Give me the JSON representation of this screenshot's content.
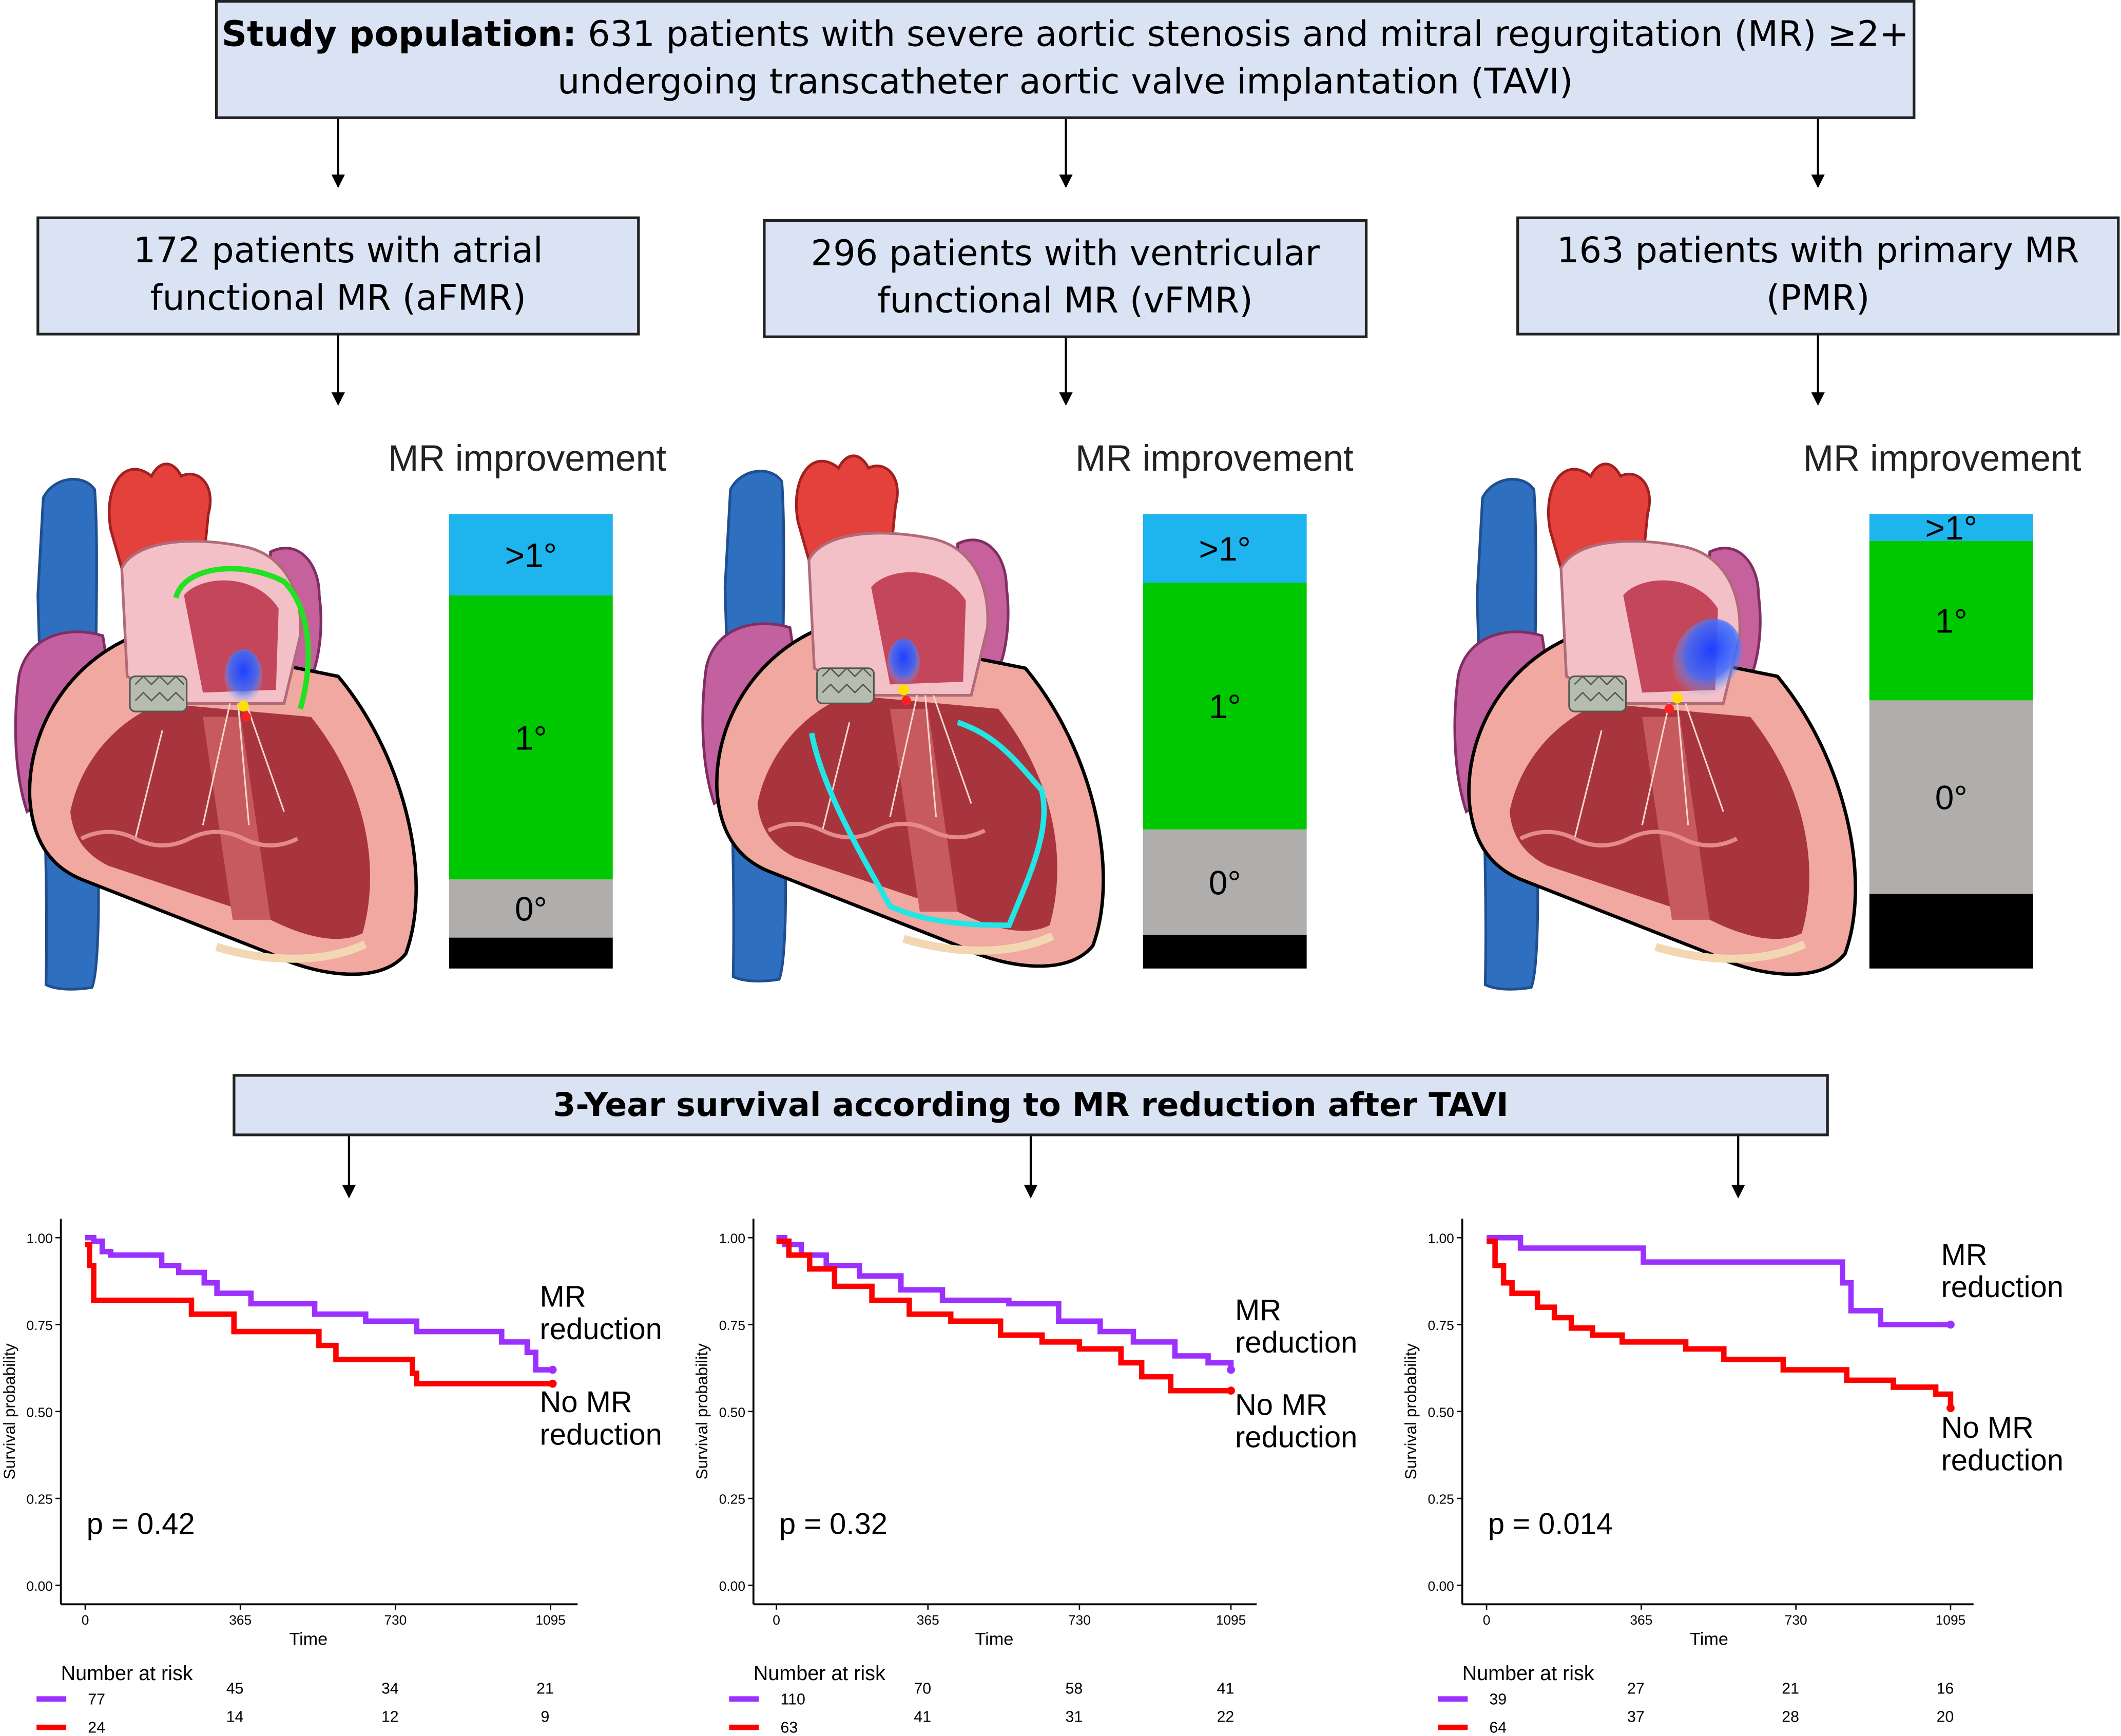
{
  "population": {
    "lead": "Study population:",
    "line1_rest": " 631 patients with severe aortic stenosis and mitral regurgitation (MR) ≥2+",
    "line2": "undergoing transcatheter aortic valve implantation (TAVI)"
  },
  "groups": [
    {
      "line1": "172 patients with atrial",
      "line2": "functional MR (aFMR)",
      "improvement_title": "MR improvement",
      "bar": [
        {
          "label": "",
          "share": 0.068,
          "color": "#000000"
        },
        {
          "label": "0°",
          "share": 0.128,
          "color": "#b0aeac"
        },
        {
          "label": "1°",
          "share": 0.625,
          "color": "#00c800"
        },
        {
          "label": ">1°",
          "share": 0.179,
          "color": "#1eb4ee"
        }
      ]
    },
    {
      "line1": "296 patients with ventricular",
      "line2": "functional MR (vFMR)",
      "improvement_title": "MR improvement",
      "bar": [
        {
          "label": "",
          "share": 0.074,
          "color": "#000000"
        },
        {
          "label": "0°",
          "share": 0.232,
          "color": "#b0aeac"
        },
        {
          "label": "1°",
          "share": 0.543,
          "color": "#00c800"
        },
        {
          "label": ">1°",
          "share": 0.151,
          "color": "#1eb4ee"
        }
      ]
    },
    {
      "line1": "163 patients with primary MR",
      "line2": "(PMR)",
      "improvement_title": "MR improvement",
      "bar": [
        {
          "label": "",
          "share": 0.164,
          "color": "#000000"
        },
        {
          "label": "0°",
          "share": 0.426,
          "color": "#b0aeac"
        },
        {
          "label": "1°",
          "share": 0.351,
          "color": "#00c800"
        },
        {
          "label": ">1°",
          "share": 0.059,
          "color": "#1eb4ee"
        }
      ]
    }
  ],
  "survival_header": "3-Year survival according to MR reduction after TAVI",
  "colors": {
    "mr_reduction": "#9b30ff",
    "no_mr_reduction": "#ff0000",
    "box_fill": "#dae3f3",
    "contour_green": "#22e022",
    "contour_cyan": "#22e6e6"
  },
  "chart_data": [
    {
      "type": "line",
      "xlabel": "Time",
      "ylabel": "Survival probability",
      "xlim": [
        0,
        1095
      ],
      "ylim": [
        0,
        1
      ],
      "x_ticks": [
        "0",
        "365",
        "730",
        "1095"
      ],
      "y_ticks": [
        "0.00",
        "0.25",
        "0.50",
        "0.75",
        "1.00"
      ],
      "annotation": "p = 0.42",
      "series": [
        {
          "name": "MR reduction",
          "label_line1": "MR",
          "label_line2": "reduction",
          "color": "#9b30ff",
          "points": [
            [
              0,
              1
            ],
            [
              20,
              0.99
            ],
            [
              40,
              0.96
            ],
            [
              60,
              0.95
            ],
            [
              180,
              0.92
            ],
            [
              220,
              0.9
            ],
            [
              280,
              0.87
            ],
            [
              310,
              0.84
            ],
            [
              390,
              0.81
            ],
            [
              540,
              0.78
            ],
            [
              660,
              0.76
            ],
            [
              780,
              0.73
            ],
            [
              980,
              0.7
            ],
            [
              1040,
              0.67
            ],
            [
              1060,
              0.62
            ],
            [
              1100,
              0.62
            ]
          ]
        },
        {
          "name": "No MR reduction",
          "label_line1": "No MR",
          "label_line2": "reduction",
          "color": "#ff0000",
          "points": [
            [
              0,
              0.98
            ],
            [
              10,
              0.92
            ],
            [
              20,
              0.82
            ],
            [
              250,
              0.78
            ],
            [
              350,
              0.73
            ],
            [
              550,
              0.69
            ],
            [
              590,
              0.65
            ],
            [
              770,
              0.61
            ],
            [
              780,
              0.58
            ],
            [
              1100,
              0.58
            ]
          ]
        }
      ],
      "risk_table": {
        "title": "Number at risk",
        "rows": [
          [
            "77",
            "45",
            "34",
            "21"
          ],
          [
            "24",
            "14",
            "12",
            "9"
          ]
        ]
      }
    },
    {
      "type": "line",
      "xlabel": "Time",
      "ylabel": "Survival probability",
      "xlim": [
        0,
        1095
      ],
      "ylim": [
        0,
        1
      ],
      "x_ticks": [
        "0",
        "365",
        "730",
        "1095"
      ],
      "y_ticks": [
        "0.00",
        "0.25",
        "0.50",
        "0.75",
        "1.00"
      ],
      "annotation": "p = 0.32",
      "series": [
        {
          "name": "MR reduction",
          "label_line1": "MR",
          "label_line2": "reduction",
          "color": "#9b30ff",
          "points": [
            [
              0,
              1
            ],
            [
              20,
              0.98
            ],
            [
              60,
              0.95
            ],
            [
              120,
              0.92
            ],
            [
              200,
              0.89
            ],
            [
              300,
              0.85
            ],
            [
              400,
              0.82
            ],
            [
              560,
              0.81
            ],
            [
              680,
              0.76
            ],
            [
              780,
              0.73
            ],
            [
              860,
              0.7
            ],
            [
              960,
              0.66
            ],
            [
              1040,
              0.64
            ],
            [
              1095,
              0.62
            ]
          ]
        },
        {
          "name": "No MR reduction",
          "label_line1": "No MR",
          "label_line2": "reduction",
          "color": "#ff0000",
          "points": [
            [
              0,
              0.99
            ],
            [
              30,
              0.95
            ],
            [
              80,
              0.91
            ],
            [
              140,
              0.86
            ],
            [
              230,
              0.82
            ],
            [
              320,
              0.78
            ],
            [
              420,
              0.76
            ],
            [
              540,
              0.72
            ],
            [
              640,
              0.7
            ],
            [
              730,
              0.68
            ],
            [
              830,
              0.64
            ],
            [
              880,
              0.6
            ],
            [
              950,
              0.56
            ],
            [
              1095,
              0.56
            ]
          ]
        }
      ],
      "risk_table": {
        "title": "Number at risk",
        "rows": [
          [
            "110",
            "70",
            "58",
            "41"
          ],
          [
            "63",
            "41",
            "31",
            "22"
          ]
        ]
      }
    },
    {
      "type": "line",
      "xlabel": "Time",
      "ylabel": "Survival probability",
      "xlim": [
        0,
        1095
      ],
      "ylim": [
        0,
        1
      ],
      "x_ticks": [
        "0",
        "365",
        "730",
        "1095"
      ],
      "y_ticks": [
        "0.00",
        "0.25",
        "0.50",
        "0.75",
        "1.00"
      ],
      "annotation": "p = 0.014",
      "series": [
        {
          "name": "MR reduction",
          "label_line1": "MR",
          "label_line2": "reduction",
          "color": "#9b30ff",
          "points": [
            [
              0,
              1
            ],
            [
              70,
              1
            ],
            [
              80,
              0.97
            ],
            [
              360,
              0.97
            ],
            [
              370,
              0.93
            ],
            [
              820,
              0.93
            ],
            [
              840,
              0.87
            ],
            [
              860,
              0.79
            ],
            [
              920,
              0.79
            ],
            [
              930,
              0.75
            ],
            [
              1095,
              0.75
            ]
          ]
        },
        {
          "name": "No MR reduction",
          "label_line1": "No MR",
          "label_line2": "reduction",
          "color": "#ff0000",
          "points": [
            [
              0,
              0.99
            ],
            [
              20,
              0.92
            ],
            [
              40,
              0.87
            ],
            [
              60,
              0.84
            ],
            [
              120,
              0.8
            ],
            [
              160,
              0.77
            ],
            [
              200,
              0.74
            ],
            [
              250,
              0.72
            ],
            [
              320,
              0.7
            ],
            [
              470,
              0.68
            ],
            [
              560,
              0.65
            ],
            [
              700,
              0.62
            ],
            [
              850,
              0.59
            ],
            [
              960,
              0.57
            ],
            [
              1060,
              0.55
            ],
            [
              1095,
              0.51
            ]
          ]
        }
      ],
      "risk_table": {
        "title": "Number at risk",
        "rows": [
          [
            "39",
            "27",
            "21",
            "16"
          ],
          [
            "64",
            "37",
            "28",
            "20"
          ]
        ]
      }
    }
  ]
}
